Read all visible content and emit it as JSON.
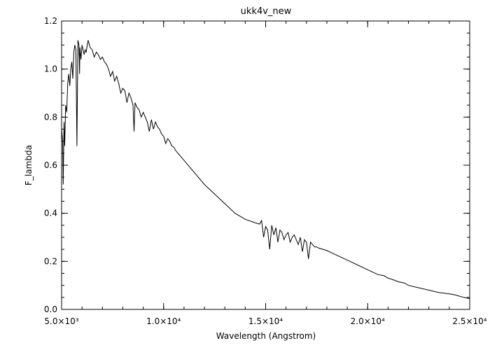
{
  "chart_data": {
    "type": "line",
    "title": "ukk4v_new",
    "xlabel": "Wavelength (Angstrom)",
    "ylabel": "F_lambda",
    "xlim": [
      5000,
      25000
    ],
    "ylim": [
      0.0,
      1.2
    ],
    "grid": false,
    "legend": "none",
    "x_ticks": [
      {
        "value": 5000,
        "label": "5.0×10³"
      },
      {
        "value": 10000,
        "label": "1.0×10⁴"
      },
      {
        "value": 15000,
        "label": "1.5×10⁴"
      },
      {
        "value": 20000,
        "label": "2.0×10⁴"
      },
      {
        "value": 25000,
        "label": "2.5×10⁴"
      }
    ],
    "y_ticks": [
      {
        "value": 0.0,
        "label": "0.0"
      },
      {
        "value": 0.2,
        "label": "0.2"
      },
      {
        "value": 0.4,
        "label": "0.4"
      },
      {
        "value": 0.6,
        "label": "0.6"
      },
      {
        "value": 0.8,
        "label": "0.8"
      },
      {
        "value": 1.0,
        "label": "1.0"
      },
      {
        "value": 1.2,
        "label": "1.2"
      }
    ],
    "series": [
      {
        "x": [
          5000,
          5050,
          5080,
          5120,
          5150,
          5200,
          5250,
          5300,
          5350,
          5400,
          5450,
          5500,
          5550,
          5600,
          5650,
          5700,
          5750,
          5800,
          5850,
          5880,
          5900,
          5950,
          6000,
          6050,
          6100,
          6150,
          6200,
          6300,
          6400,
          6500,
          6600,
          6700,
          6800,
          6900,
          7000,
          7100,
          7200,
          7300,
          7400,
          7500,
          7600,
          7700,
          7800,
          7900,
          8000,
          8100,
          8200,
          8300,
          8400,
          8500,
          8550,
          8600,
          8700,
          8800,
          8900,
          9000,
          9100,
          9200,
          9300,
          9400,
          9500,
          9600,
          9700,
          9800,
          9900,
          10000,
          10100,
          10200,
          10300,
          10400,
          10500,
          10600,
          11000,
          11500,
          12000,
          12500,
          13000,
          13500,
          14000,
          14500,
          14700,
          14800,
          14900,
          15000,
          15100,
          15200,
          15300,
          15400,
          15500,
          15600,
          15700,
          15800,
          15900,
          16000,
          16100,
          16200,
          16300,
          16400,
          16500,
          16600,
          16700,
          16800,
          16900,
          17000,
          17100,
          17200,
          17300,
          17400,
          17500,
          17600,
          18000,
          18500,
          19000,
          19500,
          20000,
          20500,
          20800,
          21000,
          21200,
          21500,
          21800,
          22000,
          22500,
          23000,
          23500,
          24000,
          24300,
          24500,
          24700,
          25000
        ],
        "y": [
          0.75,
          0.7,
          0.52,
          0.78,
          0.68,
          0.85,
          0.82,
          0.94,
          0.98,
          0.93,
          1.0,
          1.03,
          0.96,
          1.07,
          1.1,
          1.08,
          0.68,
          1.12,
          1.1,
          0.98,
          1.09,
          1.04,
          1.1,
          1.08,
          1.06,
          1.08,
          1.07,
          1.12,
          1.09,
          1.08,
          1.05,
          1.07,
          1.06,
          1.04,
          1.05,
          1.03,
          1.02,
          1.0,
          0.97,
          0.99,
          0.95,
          0.97,
          0.94,
          0.9,
          0.92,
          0.91,
          0.86,
          0.9,
          0.88,
          0.85,
          0.74,
          0.86,
          0.84,
          0.83,
          0.8,
          0.82,
          0.8,
          0.78,
          0.74,
          0.79,
          0.75,
          0.78,
          0.76,
          0.75,
          0.73,
          0.72,
          0.69,
          0.71,
          0.7,
          0.68,
          0.675,
          0.66,
          0.62,
          0.57,
          0.52,
          0.48,
          0.44,
          0.4,
          0.375,
          0.36,
          0.355,
          0.37,
          0.3,
          0.345,
          0.33,
          0.25,
          0.35,
          0.31,
          0.34,
          0.28,
          0.33,
          0.32,
          0.29,
          0.31,
          0.32,
          0.28,
          0.3,
          0.31,
          0.29,
          0.27,
          0.3,
          0.24,
          0.29,
          0.28,
          0.21,
          0.28,
          0.27,
          0.26,
          0.26,
          0.255,
          0.245,
          0.225,
          0.205,
          0.185,
          0.165,
          0.145,
          0.14,
          0.13,
          0.125,
          0.115,
          0.11,
          0.1,
          0.09,
          0.08,
          0.07,
          0.065,
          0.06,
          0.055,
          0.05,
          0.045
        ]
      }
    ]
  }
}
